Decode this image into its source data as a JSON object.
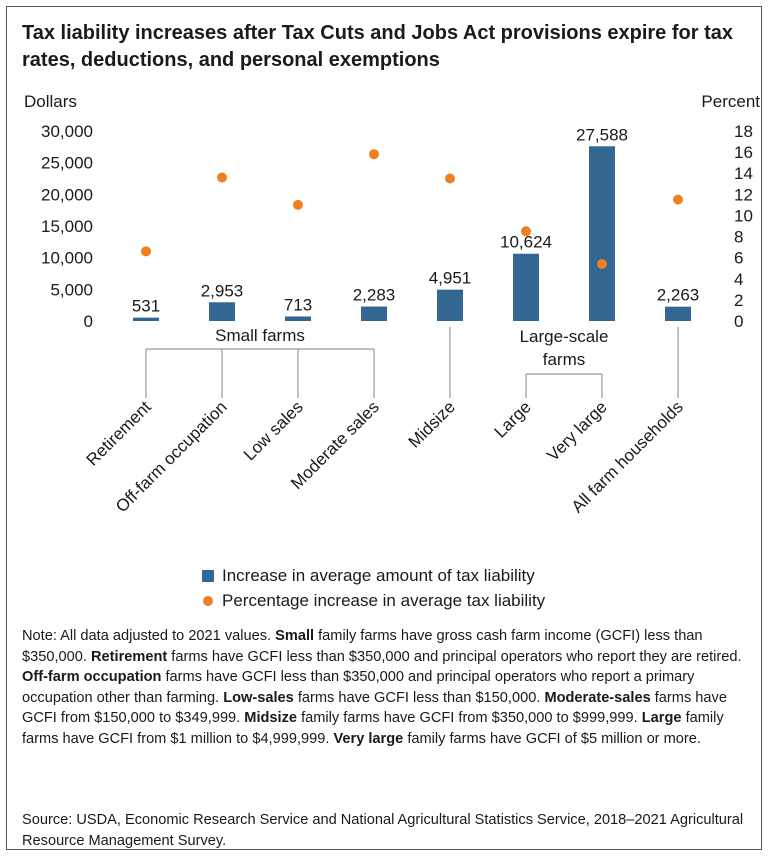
{
  "title": "Tax liability increases after Tax Cuts and Jobs Act provisions expire for tax rates, deductions, and personal exemptions",
  "colors": {
    "bar": "#336791",
    "dot": "#f07f22",
    "bracket": "#999999"
  },
  "legend": {
    "bar_label": "Increase in average amount of tax liability",
    "dot_label": "Percentage increase in average tax liability"
  },
  "chart_data": {
    "type": "bar",
    "categories": [
      "Retirement",
      "Off-farm occupation",
      "Low sales",
      "Moderate sales",
      "Midsize",
      "Large",
      "Very large",
      "All farm households"
    ],
    "groups": [
      {
        "label": "Small farms",
        "categories": [
          "Retirement",
          "Off-farm occupation",
          "Low sales",
          "Moderate sales"
        ]
      },
      {
        "label": "Large-scale farms",
        "categories": [
          "Large",
          "Very large"
        ]
      }
    ],
    "series": [
      {
        "name": "Increase in average amount of tax liability",
        "type": "bar",
        "axis": "left",
        "values": [
          531,
          2953,
          713,
          2283,
          4951,
          10624,
          27588,
          2263
        ],
        "labels": [
          "531",
          "2,953",
          "713",
          "2,283",
          "4,951",
          "10,624",
          "27,588",
          "2,263"
        ]
      },
      {
        "name": "Percentage increase in average tax liability",
        "type": "scatter",
        "axis": "right",
        "values": [
          6.6,
          13.6,
          11.0,
          15.8,
          13.5,
          8.5,
          5.4,
          11.5
        ]
      }
    ],
    "ylabel": "Dollars",
    "y2label": "Percent",
    "ylim": [
      0,
      30000
    ],
    "y2lim": [
      0,
      18
    ],
    "yticks": [
      "0",
      "5,000",
      "10,000",
      "15,000",
      "20,000",
      "25,000",
      "30,000"
    ],
    "y2ticks": [
      "0",
      "2",
      "4",
      "6",
      "8",
      "10",
      "12",
      "14",
      "16",
      "18"
    ],
    "grid": false
  },
  "note": {
    "prefix": "Note: All data adjusted to 2021 values.",
    "segments": [
      {
        "bold": "Small",
        "text": " family farms have gross cash farm income (GCFI) less than $350,000."
      },
      {
        "bold": "Retirement",
        "text": " farms have GCFI less than $350,000 and principal operators who report they are retired."
      },
      {
        "bold": "Off-farm occupation",
        "text": " farms have GCFI less than $350,000 and principal operators who report a primary occupation other than farming."
      },
      {
        "bold": "Low-sales",
        "text": " farms have GCFI less than $150,000."
      },
      {
        "bold": "Moderate-sales",
        "text": " farms have GCFI from $150,000 to $349,999."
      },
      {
        "bold": "Midsize",
        "text": " family farms have GCFI from $350,000 to $999,999."
      },
      {
        "bold": "Large",
        "text": " family farms have GCFI from $1 million to $4,999,999."
      },
      {
        "bold": "Very large",
        "text": " family farms have GCFI of $5 million or more."
      }
    ]
  },
  "source": "Source: USDA, Economic Research Service and National Agricultural Statistics Service, 2018–2021 Agricultural Resource Management Survey."
}
